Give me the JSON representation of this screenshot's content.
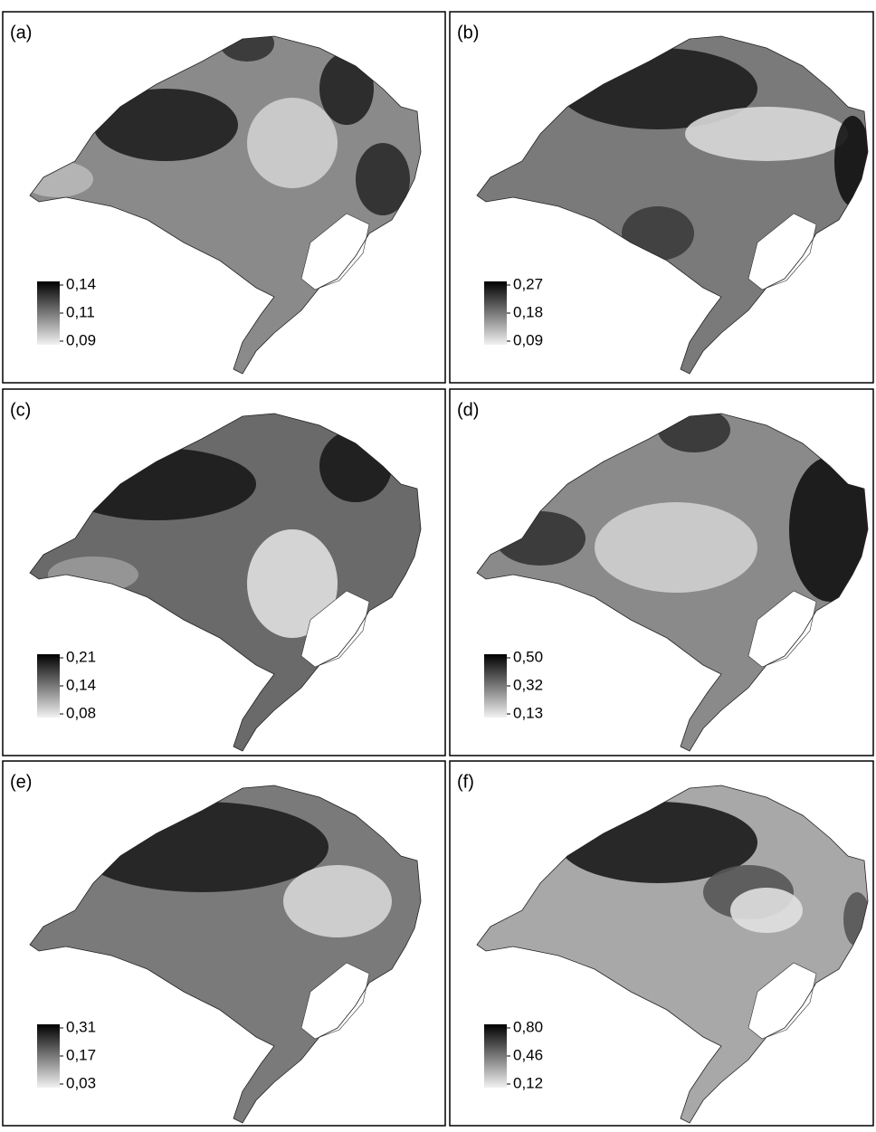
{
  "panels": [
    {
      "label": "(a)",
      "legend": [
        "0,14",
        "0,11",
        "0,09"
      ]
    },
    {
      "label": "(b)",
      "legend": [
        "0,27",
        "0,18",
        "0,09"
      ]
    },
    {
      "label": "(c)",
      "legend": [
        "0,21",
        "0,14",
        "0,08"
      ]
    },
    {
      "label": "(d)",
      "legend": [
        "0,50",
        "0,32",
        "0,13"
      ]
    },
    {
      "label": "(e)",
      "legend": [
        "0,31",
        "0,17",
        "0,03"
      ]
    },
    {
      "label": "(f)",
      "legend": [
        "0,80",
        "0,46",
        "0,12"
      ]
    }
  ]
}
